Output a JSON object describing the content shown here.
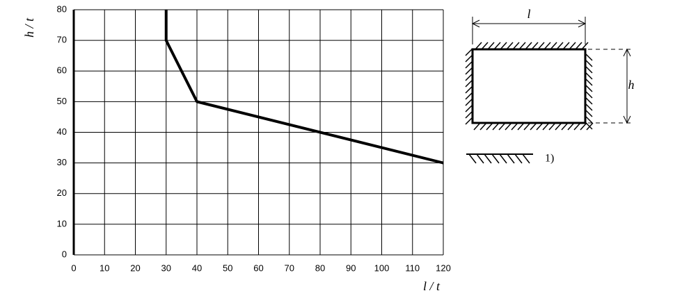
{
  "chart_data": {
    "type": "line",
    "xlabel": "l / t",
    "ylabel": "h / t",
    "x": [
      30,
      30,
      40,
      120
    ],
    "values": [
      80,
      70,
      50,
      30
    ],
    "color": "#000000",
    "xlim": [
      0,
      120
    ],
    "ylim": [
      0,
      80
    ],
    "xticks": [
      0,
      10,
      20,
      30,
      40,
      50,
      60,
      70,
      80,
      90,
      100,
      110,
      120
    ],
    "yticks": [
      0,
      10,
      20,
      30,
      40,
      50,
      60,
      70,
      80
    ],
    "grid": true
  },
  "diagram": {
    "width_label": "l",
    "height_label": "h",
    "legend_label": "1)"
  }
}
